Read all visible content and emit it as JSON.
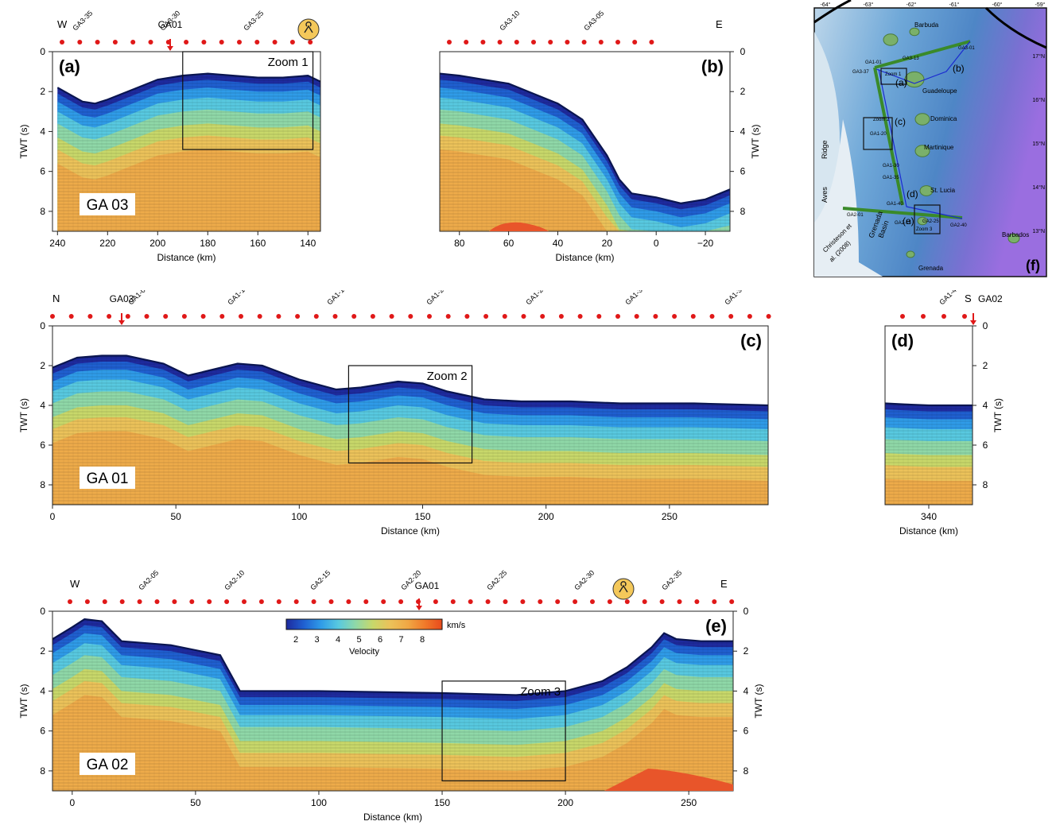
{
  "velocity_colors": {
    "stops": [
      "#1e2a9e",
      "#1f5fd0",
      "#2f9be8",
      "#58c9e0",
      "#8fd8a8",
      "#c8d86a",
      "#ecc25a",
      "#f0a845",
      "#f07a2a",
      "#e84a1c"
    ],
    "basement": "#eeab4a",
    "deep": "#e8552a",
    "dot": "#e01818"
  },
  "colorbar": {
    "ticks": [
      "2",
      "3",
      "4",
      "5",
      "6",
      "7",
      "8"
    ],
    "unit": "km/s",
    "label": "Velocity"
  },
  "panels": [
    {
      "id": "a",
      "tag": "(a)",
      "line_name": "GA 03",
      "zoom_label": "Zoom 1",
      "left_dir": "W",
      "right_dir": "",
      "station_labels": [
        "GA3-35",
        "GA3-30",
        "GA3-25"
      ],
      "crossing_label": "GA01",
      "xlabel": "Distance (km)",
      "ylabel": "TWT (s)",
      "xticks": [
        "240",
        "220",
        "200",
        "180",
        "160",
        "140"
      ],
      "yticks": [
        "0",
        "2",
        "4",
        "6",
        "8"
      ],
      "chart_data": {
        "type": "area",
        "x_km": [
          240,
          230,
          225,
          220,
          210,
          200,
          190,
          180,
          170,
          160,
          150,
          140,
          135
        ],
        "seafloor_twt_s": [
          1.8,
          2.5,
          2.6,
          2.4,
          1.9,
          1.4,
          1.2,
          1.1,
          1.2,
          1.3,
          1.3,
          1.2,
          1.5
        ],
        "xlim": [
          242,
          135
        ],
        "ylim": [
          0,
          9
        ],
        "zoom_box": {
          "x": [
            190,
            138
          ],
          "twt": [
            0,
            4.9
          ]
        }
      }
    },
    {
      "id": "b",
      "tag": "(b)",
      "line_name": "",
      "zoom_label": "",
      "left_dir": "",
      "right_dir": "E",
      "station_labels": [
        "GA3-10",
        "GA3-05"
      ],
      "crossing_label": "",
      "xlabel": "Distance (km)",
      "ylabel": "TWT (s)",
      "xticks": [
        "80",
        "60",
        "40",
        "20",
        "0",
        "−20"
      ],
      "yticks": [
        "0",
        "2",
        "4",
        "6",
        "8"
      ],
      "chart_data": {
        "type": "area",
        "x_km": [
          88,
          80,
          70,
          60,
          50,
          40,
          30,
          20,
          15,
          10,
          0,
          -10,
          -20,
          -30
        ],
        "seafloor_twt_s": [
          1.1,
          1.2,
          1.4,
          1.6,
          2.1,
          2.6,
          3.4,
          5.2,
          6.4,
          7.1,
          7.3,
          7.6,
          7.4,
          6.9
        ],
        "xlim": [
          88,
          -30
        ],
        "ylim": [
          0,
          9
        ]
      }
    },
    {
      "id": "c",
      "tag": "(c)",
      "line_name": "GA 01",
      "zoom_label": "Zoom 2",
      "left_dir": "N",
      "right_dir": "",
      "station_labels": [
        "GA1-05",
        "GA1-10",
        "GA1-15",
        "GA1-20",
        "GA1-25",
        "GA1-30",
        "GA1-35"
      ],
      "crossing_label": "GA03",
      "xlabel": "Distance (km)",
      "ylabel": "TWT (s)",
      "xticks": [
        "0",
        "50",
        "100",
        "150",
        "200",
        "250"
      ],
      "yticks": [
        "0",
        "2",
        "4",
        "6",
        "8"
      ],
      "chart_data": {
        "type": "area",
        "x_km": [
          0,
          10,
          20,
          30,
          45,
          55,
          65,
          75,
          85,
          100,
          115,
          125,
          140,
          150,
          160,
          175,
          190,
          210,
          230,
          260,
          290
        ],
        "seafloor_twt_s": [
          2.1,
          1.6,
          1.5,
          1.5,
          1.9,
          2.5,
          2.2,
          1.9,
          2.0,
          2.7,
          3.2,
          3.1,
          2.8,
          2.9,
          3.3,
          3.7,
          3.8,
          3.8,
          3.9,
          3.9,
          4.0
        ],
        "xlim": [
          0,
          290
        ],
        "ylim": [
          0,
          9
        ],
        "zoom_box": {
          "x": [
            120,
            170
          ],
          "twt": [
            2.0,
            6.9
          ]
        }
      }
    },
    {
      "id": "d",
      "tag": "(d)",
      "line_name": "",
      "zoom_label": "",
      "left_dir": "",
      "right_dir": "S",
      "station_labels": [
        "GA1-40"
      ],
      "crossing_label": "GA02",
      "xlabel": "Distance (km)",
      "ylabel": "TWT (s)",
      "xticks": [
        "340"
      ],
      "yticks": [
        "0",
        "2",
        "4",
        "6",
        "8"
      ],
      "chart_data": {
        "type": "area",
        "x_km": [
          322,
          330,
          340,
          350,
          358
        ],
        "seafloor_twt_s": [
          3.9,
          3.95,
          4.0,
          4.0,
          4.0
        ],
        "xlim": [
          322,
          358
        ],
        "ylim": [
          0,
          9
        ]
      }
    },
    {
      "id": "e",
      "tag": "(e)",
      "line_name": "GA 02",
      "zoom_label": "Zoom 3",
      "left_dir": "W",
      "right_dir": "E",
      "station_labels": [
        "GA2-05",
        "GA2-10",
        "GA2-15",
        "GA2-20",
        "GA2-25",
        "GA2-30",
        "GA2-35"
      ],
      "crossing_label": "GA01",
      "xlabel": "Distance (km)",
      "ylabel": "TWT (s)",
      "xticks": [
        "0",
        "50",
        "100",
        "150",
        "200",
        "250"
      ],
      "yticks": [
        "0",
        "2",
        "4",
        "6",
        "8"
      ],
      "chart_data": {
        "type": "area",
        "x_km": [
          -8,
          0,
          5,
          12,
          20,
          40,
          60,
          68,
          100,
          150,
          180,
          200,
          215,
          225,
          235,
          240,
          245,
          255,
          268
        ],
        "seafloor_twt_s": [
          1.4,
          0.8,
          0.4,
          0.5,
          1.5,
          1.7,
          2.2,
          4.0,
          4.0,
          4.1,
          4.2,
          4.0,
          3.5,
          2.8,
          1.8,
          1.1,
          1.4,
          1.5,
          1.5
        ],
        "xlim": [
          -8,
          268
        ],
        "ylim": [
          0,
          9
        ],
        "zoom_box": {
          "x": [
            150,
            200
          ],
          "twt": [
            3.5,
            8.5
          ]
        }
      }
    }
  ],
  "map": {
    "tag": "(f)",
    "lon_ticks": [
      "-64°",
      "-63°",
      "-62°",
      "-61°",
      "-60°",
      "-59°"
    ],
    "lat_ticks": [
      "17°N",
      "16°N",
      "15°N",
      "14°N",
      "13°N"
    ],
    "islands": [
      "Barbuda",
      "Guadeloupe",
      "Dominica",
      "Martinique",
      "St. Lucia",
      "Barbados",
      "Grenada"
    ],
    "features": [
      "Aves",
      "Ridge",
      "Grenada",
      "Basin"
    ],
    "reference": [
      "Christeson et",
      "al. (2008)"
    ],
    "line_labels": [
      "GA1-01",
      "GA3-37",
      "GA1-20",
      "GA1-30",
      "GA1-35",
      "GA1-40",
      "GA2-01",
      "GA3-13",
      "GA3-01",
      "GA2-15",
      "GA2-25",
      "GA2-40"
    ],
    "inset_tags": [
      "(a)",
      "(b)",
      "(c)",
      "(d)",
      "(e)"
    ],
    "zoom_labels": [
      "Zoom 1",
      "Zoom 2",
      "Zoom 3"
    ]
  }
}
